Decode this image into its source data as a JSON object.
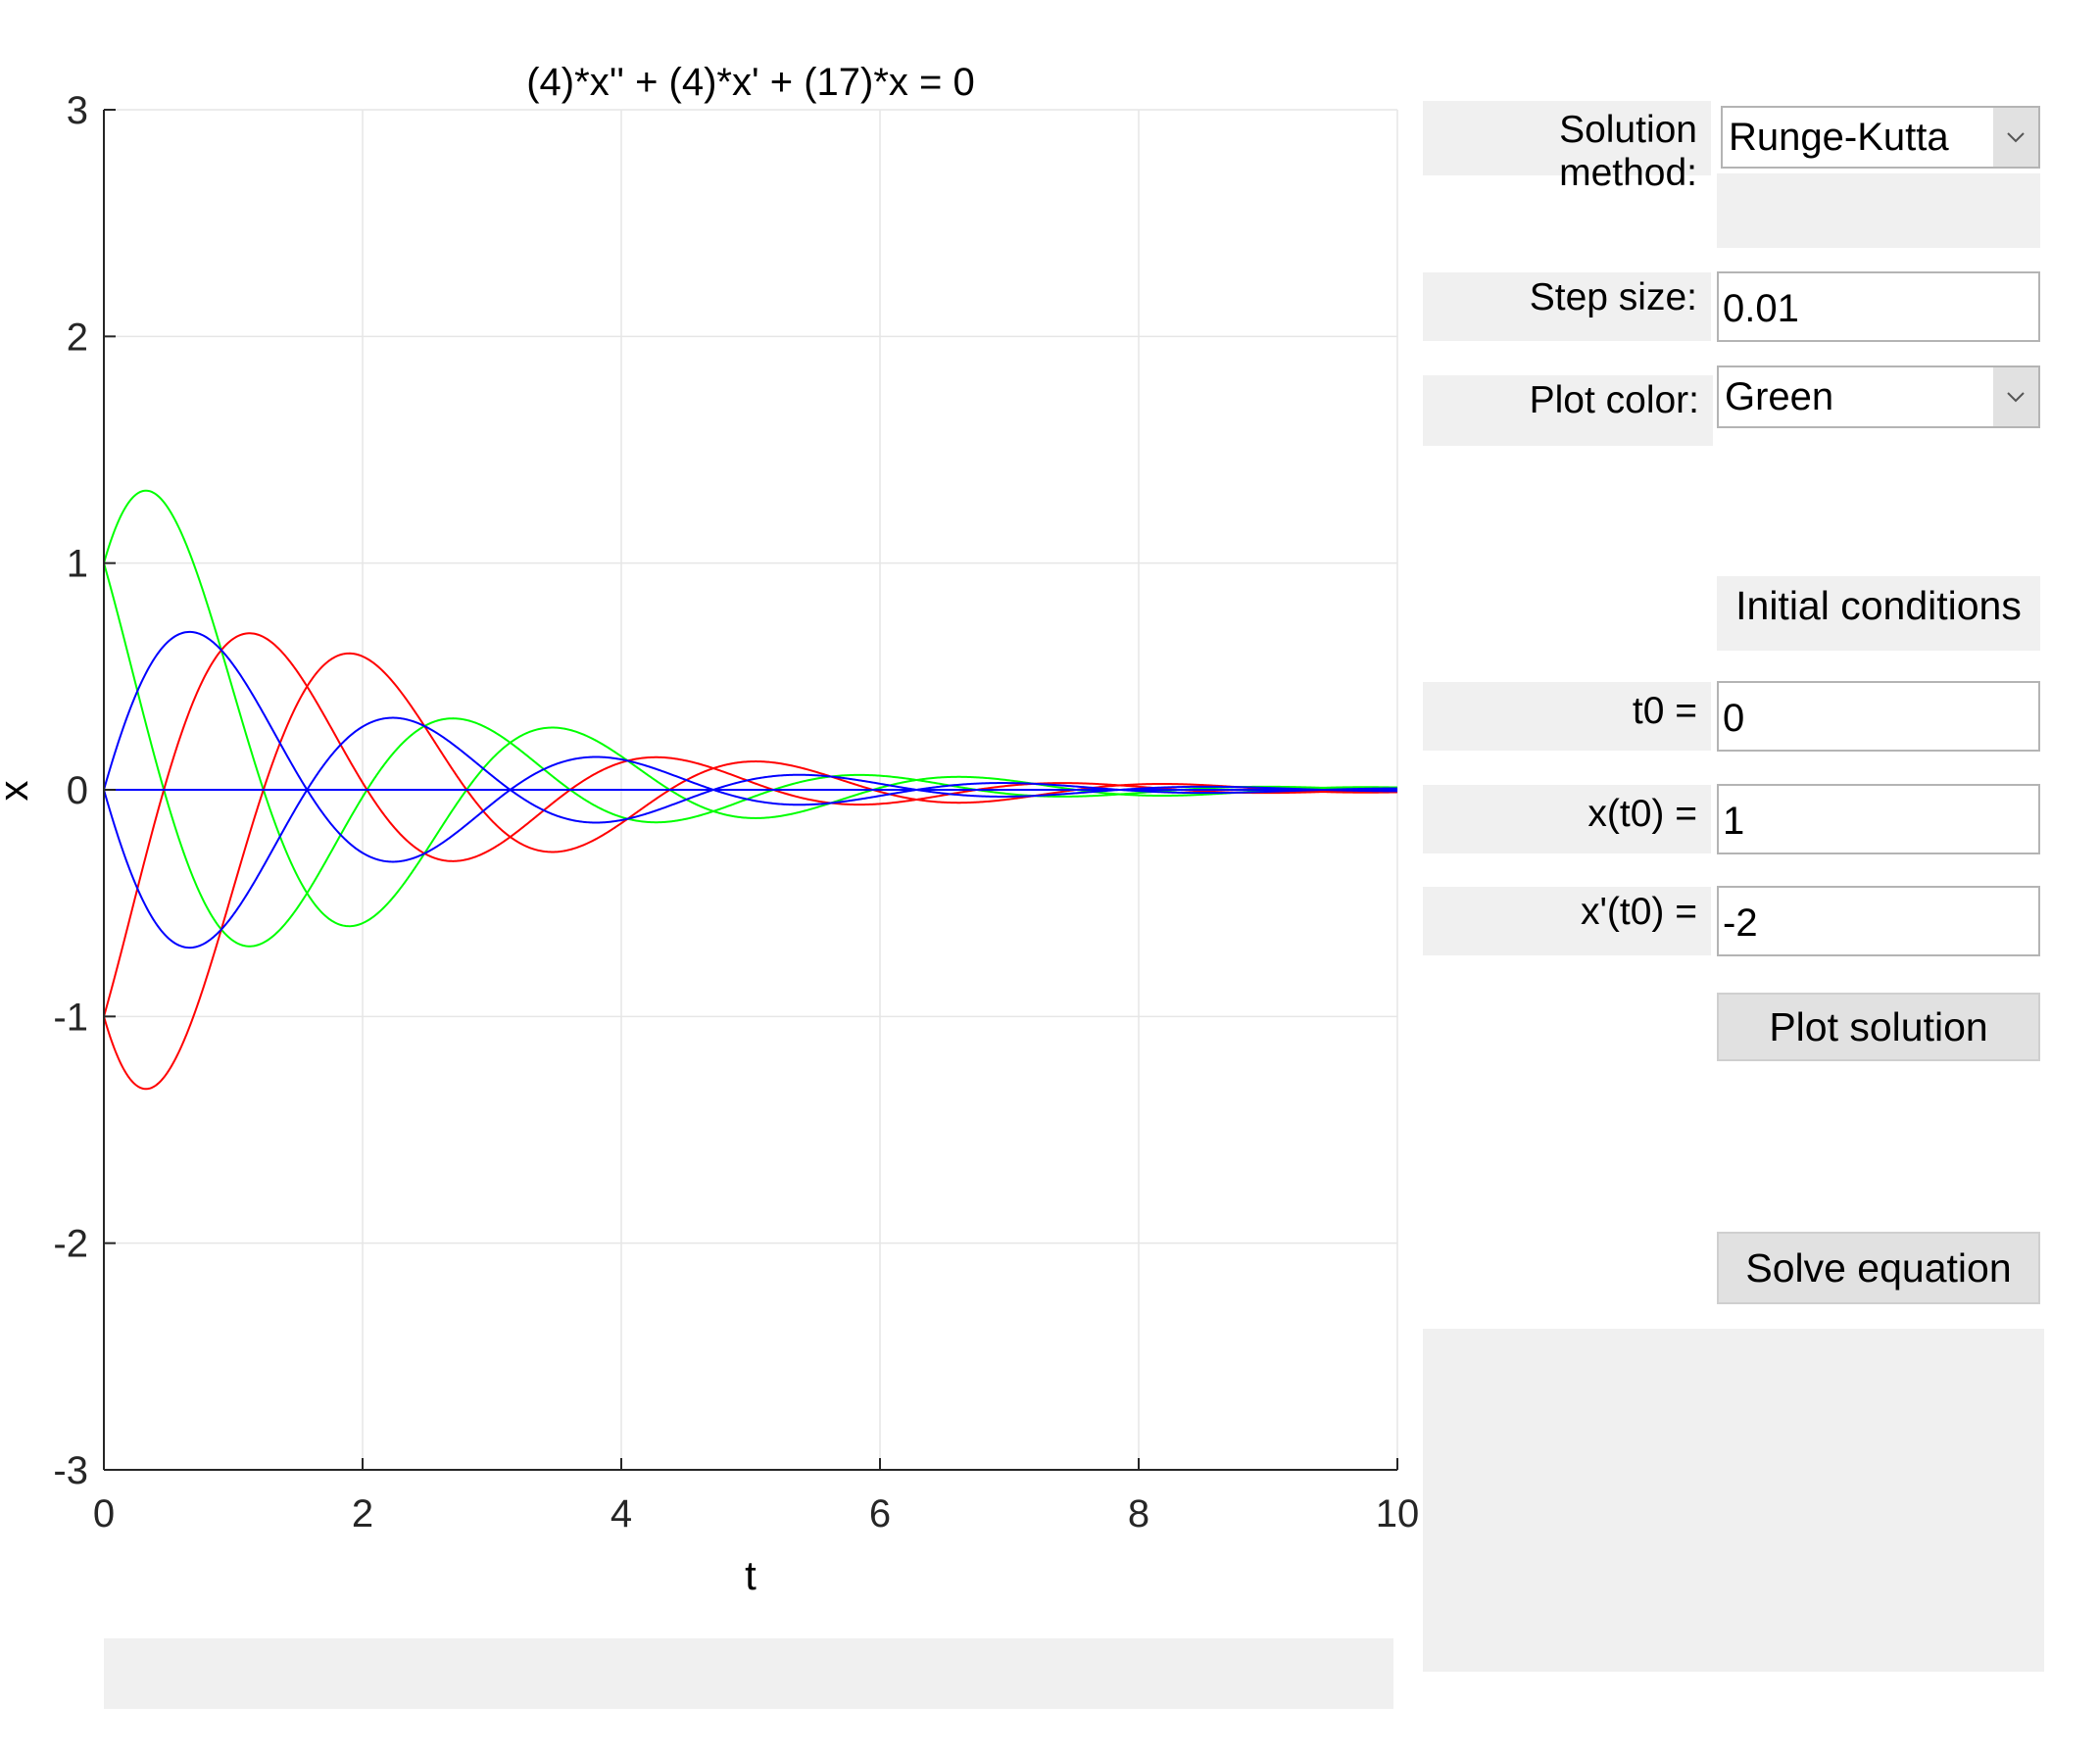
{
  "chart_data": {
    "type": "line",
    "title": "(4)*x'' + (4)*x' + (17)*x = 0",
    "xlabel": "t",
    "ylabel": "x",
    "xlim": [
      0,
      10
    ],
    "ylim": [
      -3,
      3
    ],
    "xticks": [
      "0",
      "2",
      "4",
      "6",
      "8",
      "10"
    ],
    "yticks": [
      "-3",
      "-2",
      "-1",
      "0",
      "1",
      "2",
      "3"
    ],
    "grid": true,
    "equation": {
      "a": 4,
      "b": 4,
      "c": 17
    },
    "curves": [
      {
        "color": "#00ff00",
        "x0": 1,
        "v0": 2
      },
      {
        "color": "#00ff00",
        "x0": 1,
        "v0": -2
      },
      {
        "color": "#ff0000",
        "x0": -1,
        "v0": -2
      },
      {
        "color": "#ff0000",
        "x0": -1,
        "v0": 2
      },
      {
        "color": "#0000ff",
        "x0": 0,
        "v0": 2
      },
      {
        "color": "#0000ff",
        "x0": 0,
        "v0": -2
      },
      {
        "color": "#0000ff",
        "x0": 0,
        "v0": 0
      }
    ]
  },
  "controls": {
    "method_label": "Solution method:",
    "method_value": "Runge-Kutta",
    "step_label": "Step size:",
    "step_value": "0.01",
    "color_label": "Plot color:",
    "color_value": "Green",
    "initial_title": "Initial conditions",
    "t0_label": "t0 =",
    "t0_value": "0",
    "x0_label": "x(t0) =",
    "x0_value": "1",
    "v0_label": "x'(t0) =",
    "v0_value": "-2",
    "plot_button": "Plot solution",
    "solve_button": "Solve equation"
  }
}
